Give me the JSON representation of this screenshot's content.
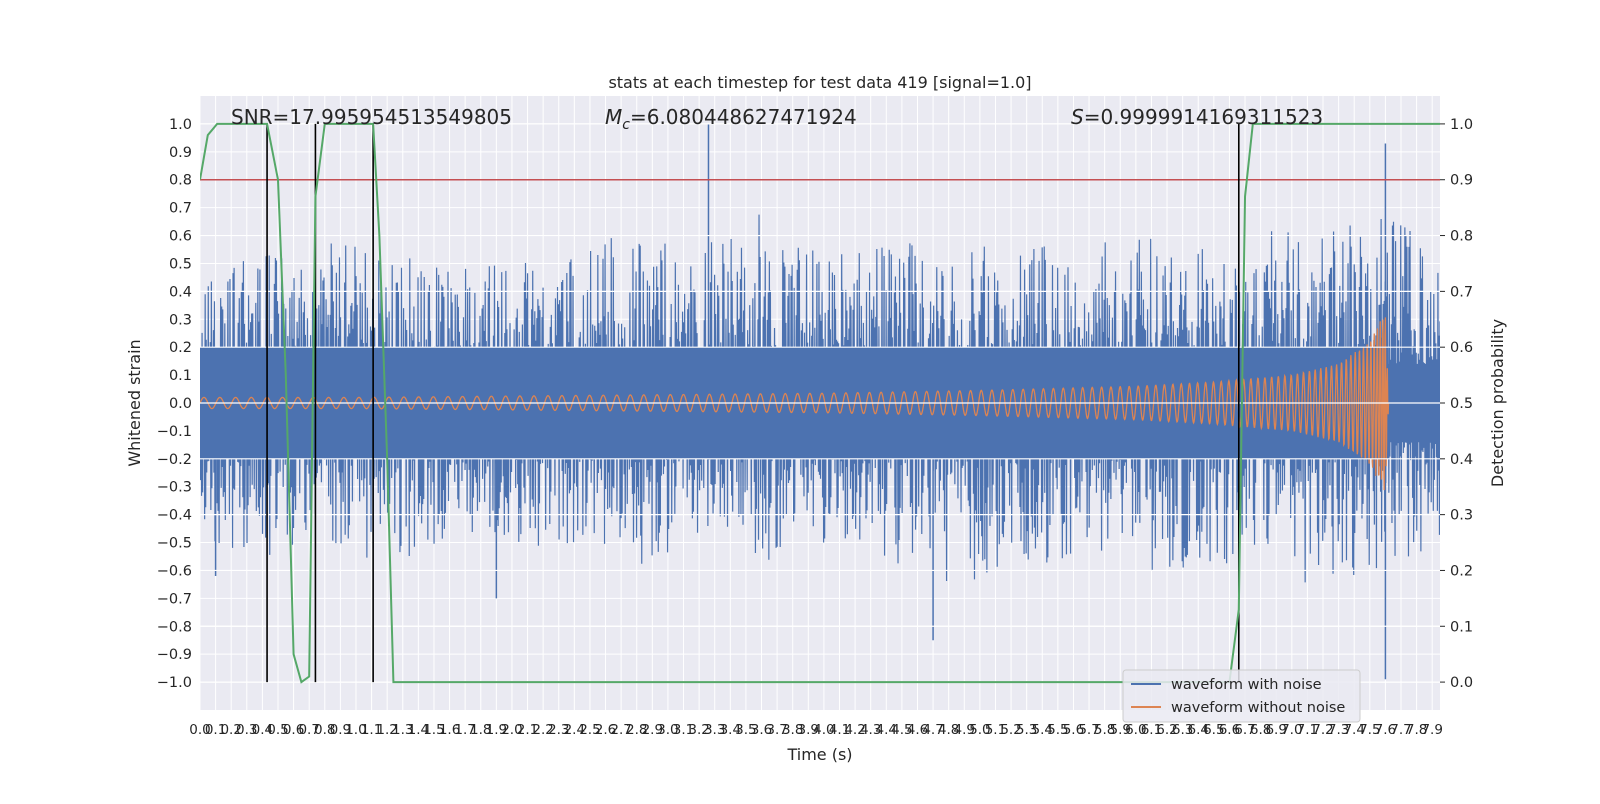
{
  "chart_data": {
    "type": "line",
    "title": "stats at each timestep for test data 419 [signal=1.0]",
    "xlabel": "Time (s)",
    "ylabel": "Whitened strain",
    "ylabel_right": "Detection probability",
    "xlim": [
      0.0,
      7.95
    ],
    "ylim": [
      -1.1,
      1.1
    ],
    "ylim_right": [
      -0.05,
      1.05
    ],
    "x_ticks": [
      "0.0",
      "0.1",
      "0.2",
      "0.3",
      "0.4",
      "0.5",
      "0.6",
      "0.7",
      "0.8",
      "0.9",
      "1.0",
      "1.1",
      "1.2",
      "1.3",
      "1.4",
      "1.5",
      "1.6",
      "1.7",
      "1.8",
      "1.9",
      "2.0",
      "2.1",
      "2.2",
      "2.3",
      "2.4",
      "2.5",
      "2.6",
      "2.7",
      "2.8",
      "2.9",
      "3.0",
      "3.1",
      "3.2",
      "3.3",
      "3.4",
      "3.5",
      "3.6",
      "3.7",
      "3.8",
      "3.9",
      "4.0",
      "4.1",
      "4.2",
      "4.3",
      "4.4",
      "4.5",
      "4.6",
      "4.7",
      "4.8",
      "4.9",
      "5.0",
      "5.1",
      "5.2",
      "5.3",
      "5.4",
      "5.5",
      "5.6",
      "5.7",
      "5.8",
      "5.9",
      "6.0",
      "6.1",
      "6.2",
      "6.3",
      "6.4",
      "6.5",
      "6.6",
      "6.7",
      "6.8",
      "6.9",
      "7.0",
      "7.1",
      "7.2",
      "7.3",
      "7.4",
      "7.5",
      "7.6",
      "7.7",
      "7.8",
      "7.9"
    ],
    "y_ticks_left": [
      "−1.0",
      "−0.9",
      "−0.8",
      "−0.7",
      "−0.6",
      "−0.5",
      "−0.4",
      "−0.3",
      "−0.2",
      "−0.1",
      "0.0",
      "0.1",
      "0.2",
      "0.3",
      "0.4",
      "0.5",
      "0.6",
      "0.7",
      "0.8",
      "0.9",
      "1.0"
    ],
    "y_ticks_right": [
      "0.0",
      "0.1",
      "0.2",
      "0.3",
      "0.4",
      "0.5",
      "0.6",
      "0.7",
      "0.8",
      "0.9",
      "1.0"
    ],
    "annotations": {
      "snr": "SNR=17.995954513549805",
      "mc_symbol": "M",
      "mc_sub": "c",
      "mc_value": "=6.080448627471924",
      "s_symbol": "S",
      "s_value": "=0.9999914169311523"
    },
    "threshold": 0.9,
    "event_lines_x": [
      0.43,
      0.74,
      1.11,
      6.66
    ],
    "legend": {
      "position": "lower-right",
      "entries": [
        "waveform with noise",
        "waveform without noise"
      ]
    },
    "series": [
      {
        "name": "waveform with noise",
        "color": "#4c72b0",
        "envelope": {
          "x": [
            0.0,
            0.4,
            0.8,
            1.2,
            1.6,
            2.0,
            2.4,
            2.8,
            3.2,
            3.6,
            4.0,
            4.4,
            4.8,
            5.2,
            5.6,
            6.0,
            6.4,
            6.8,
            7.2,
            7.6,
            7.95
          ],
          "upper": [
            0.42,
            0.55,
            0.62,
            0.5,
            0.55,
            0.48,
            0.58,
            0.62,
            0.55,
            0.68,
            0.52,
            0.58,
            0.56,
            0.58,
            0.55,
            0.6,
            0.55,
            0.62,
            0.6,
            0.72,
            0.5
          ],
          "lower": [
            -0.52,
            -0.55,
            -0.5,
            -0.58,
            -0.5,
            -0.52,
            -0.5,
            -0.58,
            -0.55,
            -0.57,
            -0.5,
            -0.55,
            -0.68,
            -0.6,
            -0.55,
            -0.6,
            -0.62,
            -0.6,
            -0.66,
            -0.58,
            -0.55
          ]
        },
        "spikes": [
          [
            3.26,
            1.0
          ],
          [
            7.6,
            0.93
          ],
          [
            7.6,
            -0.99
          ],
          [
            4.7,
            -0.85
          ],
          [
            0.1,
            -0.62
          ],
          [
            1.9,
            -0.7
          ]
        ]
      },
      {
        "name": "waveform without noise",
        "color": "#dd8452",
        "amplitude": {
          "x": [
            0.0,
            1.0,
            2.0,
            3.0,
            4.0,
            5.0,
            6.0,
            6.5,
            7.0,
            7.3,
            7.5,
            7.6,
            7.62
          ],
          "y": [
            0.02,
            0.02,
            0.025,
            0.03,
            0.035,
            0.045,
            0.06,
            0.075,
            0.1,
            0.14,
            0.22,
            0.33,
            0.0
          ]
        }
      },
      {
        "name": "",
        "color": "#55a868",
        "axis": "right",
        "x": [
          0.0,
          0.05,
          0.11,
          0.2,
          0.43,
          0.5,
          0.55,
          0.6,
          0.65,
          0.7,
          0.74,
          0.8,
          1.11,
          1.15,
          1.2,
          1.24,
          1.3,
          2.0,
          3.0,
          4.0,
          5.0,
          6.0,
          6.6,
          6.66,
          6.7,
          6.75,
          7.95
        ],
        "y": [
          0.9,
          0.98,
          1.0,
          1.0,
          1.0,
          0.9,
          0.55,
          0.05,
          0.0,
          0.01,
          0.87,
          1.0,
          1.0,
          0.8,
          0.4,
          0.0,
          0.0,
          0.0,
          0.0,
          0.0,
          0.0,
          0.0,
          0.0,
          0.13,
          0.87,
          1.0,
          1.0
        ]
      }
    ],
    "colors": {
      "axes_background": "#eaeaf2",
      "grid": "#ffffff",
      "threshold_line": "#c44e52",
      "event_line": "#000000"
    }
  }
}
